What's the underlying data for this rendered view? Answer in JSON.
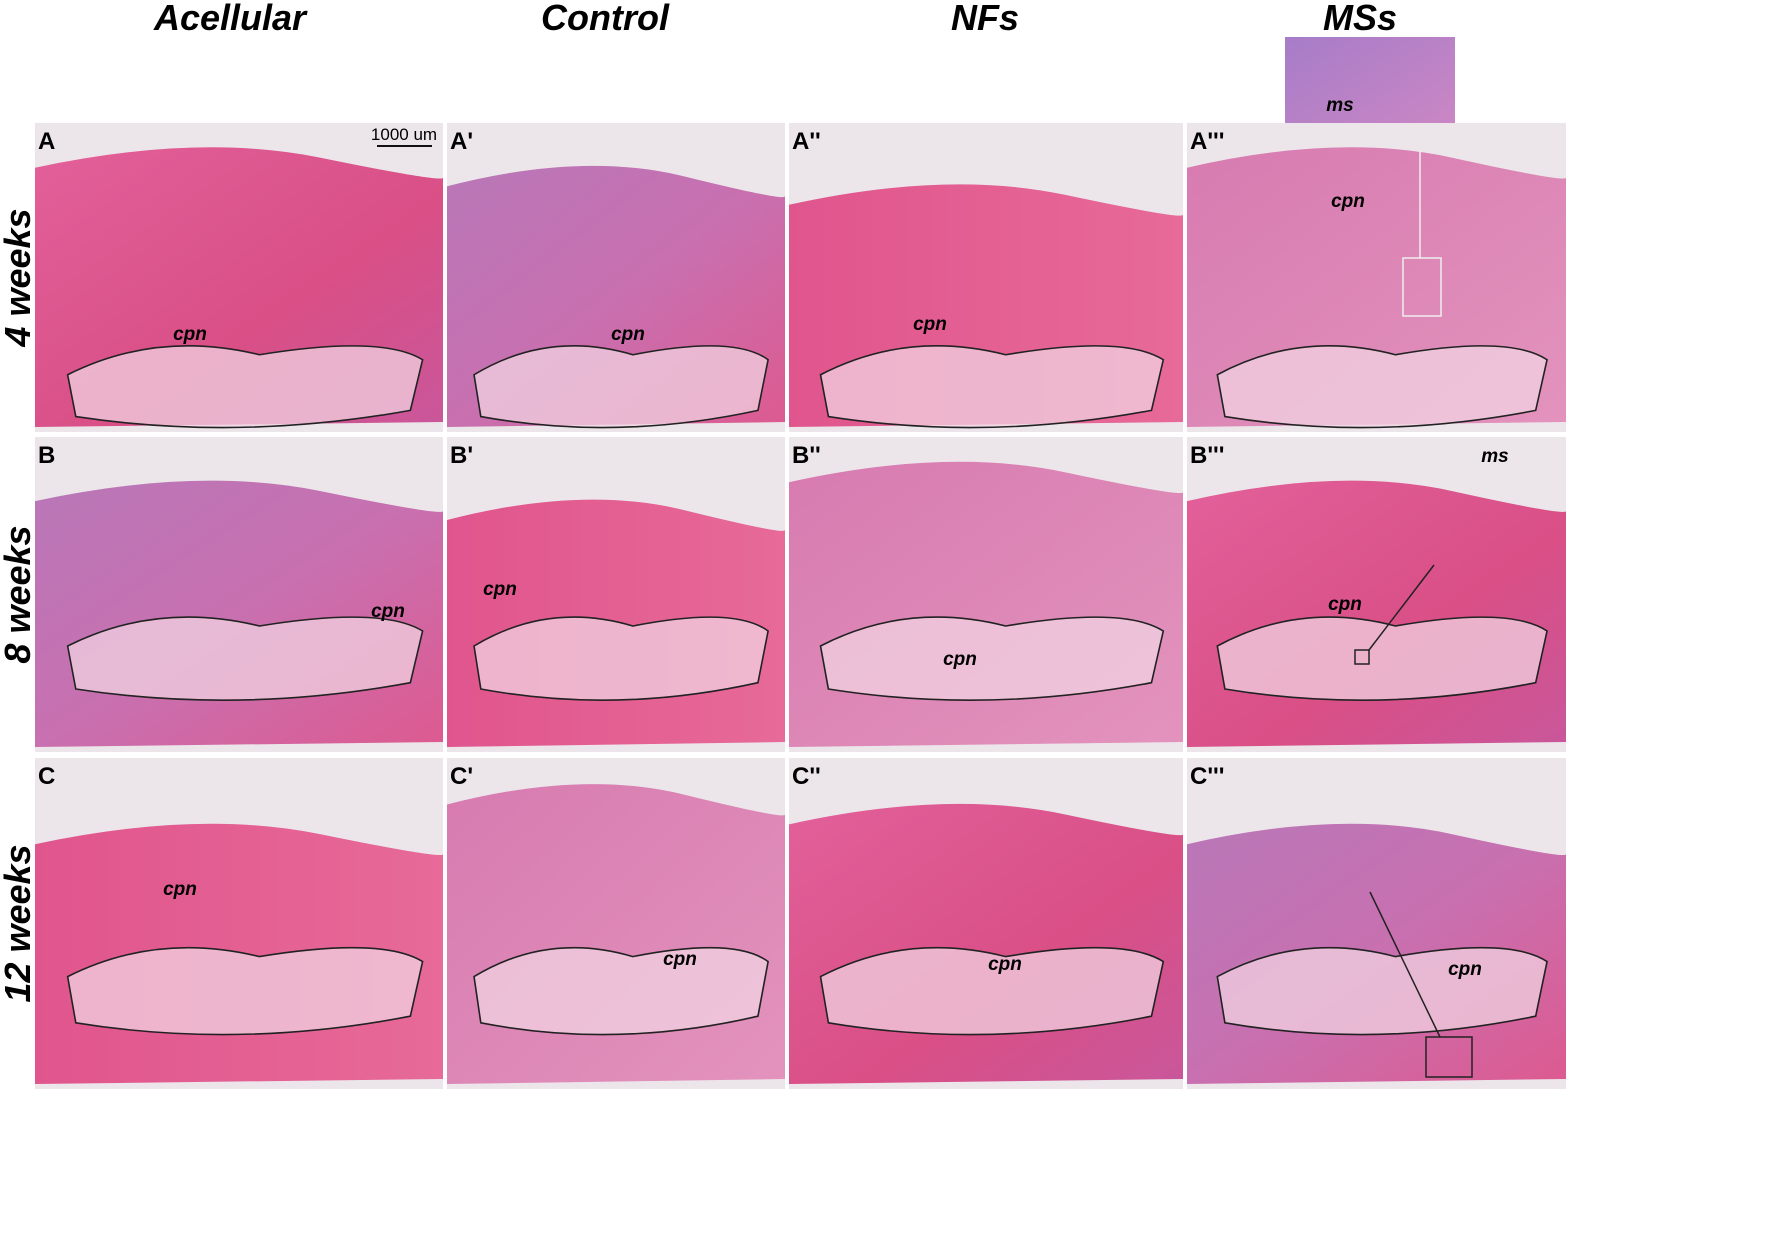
{
  "columns": [
    "Acellular",
    "Control",
    "NFs",
    "MSs"
  ],
  "rows": [
    "4 weeks",
    "8 weeks",
    "12 weeks"
  ],
  "scale_bar": "1000 um",
  "panels": [
    [
      {
        "letter": "A",
        "labels": [
          "cpn"
        ]
      },
      {
        "letter": "A'",
        "labels": [
          "cpn"
        ]
      },
      {
        "letter": "A''",
        "labels": [
          "cpn"
        ]
      },
      {
        "letter": "A'''",
        "labels": [
          "cpn",
          "ms"
        ]
      }
    ],
    [
      {
        "letter": "B",
        "labels": [
          "cpn"
        ]
      },
      {
        "letter": "B'",
        "labels": [
          "cpn"
        ]
      },
      {
        "letter": "B''",
        "labels": [
          "cpn"
        ]
      },
      {
        "letter": "B'''",
        "labels": [
          "cpn",
          "ms"
        ]
      }
    ],
    [
      {
        "letter": "C",
        "labels": [
          "cpn"
        ]
      },
      {
        "letter": "C'",
        "labels": [
          "cpn"
        ]
      },
      {
        "letter": "C''",
        "labels": [
          "cpn"
        ]
      },
      {
        "letter": "C'''",
        "labels": [
          "cpn"
        ]
      }
    ]
  ]
}
